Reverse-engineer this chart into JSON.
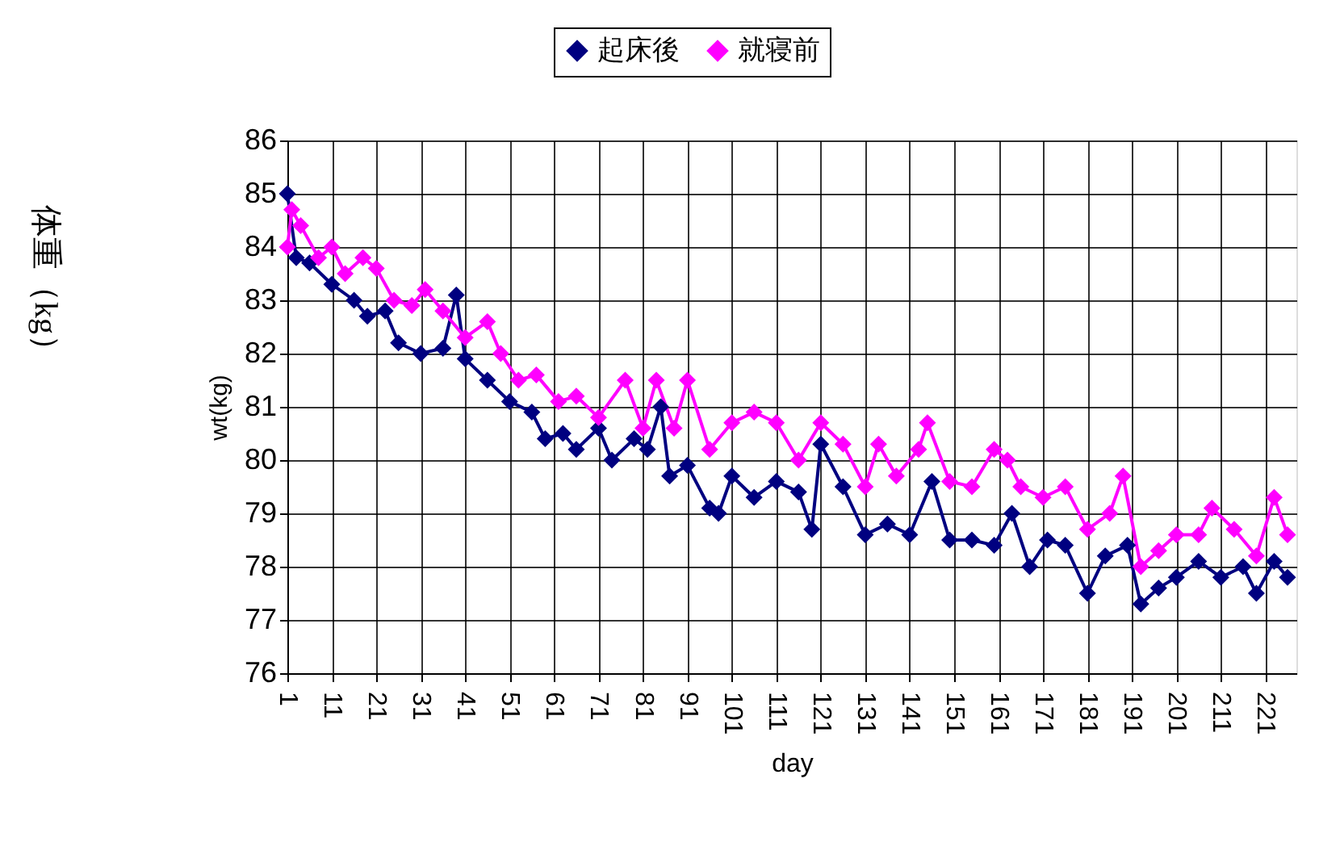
{
  "chart_data": {
    "type": "line",
    "xlabel": "day",
    "ylabel": "wt(kg)",
    "annotations": [
      "体重（kg）"
    ],
    "xlim": [
      1,
      228
    ],
    "xticks": [
      1,
      11,
      21,
      31,
      41,
      51,
      61,
      71,
      81,
      91,
      101,
      111,
      121,
      131,
      141,
      151,
      161,
      171,
      181,
      191,
      201,
      211,
      221
    ],
    "ylim": [
      76,
      86
    ],
    "yticks": [
      76,
      77,
      78,
      79,
      80,
      81,
      82,
      83,
      84,
      85,
      86
    ],
    "grid": true,
    "legend": "top",
    "marker": "diamond",
    "line_style": "solid",
    "series": [
      {
        "name": "起床後",
        "color": "#000080",
        "x": [
          1,
          3,
          6,
          11,
          16,
          19,
          23,
          26,
          31,
          36,
          39,
          41,
          46,
          51,
          56,
          59,
          63,
          66,
          71,
          74,
          79,
          82,
          85,
          87,
          91,
          96,
          98,
          101,
          106,
          111,
          116,
          119,
          121,
          126,
          131,
          136,
          141,
          146,
          150,
          155,
          160,
          164,
          168,
          172,
          176,
          181,
          185,
          190,
          193,
          197,
          201,
          206,
          211,
          216,
          219,
          223,
          226
        ],
        "values": [
          85.0,
          83.8,
          83.7,
          83.3,
          83.0,
          82.7,
          82.8,
          82.2,
          82.0,
          82.1,
          83.1,
          81.9,
          81.5,
          81.1,
          80.9,
          80.4,
          80.5,
          80.2,
          80.6,
          80.0,
          80.4,
          80.2,
          81.0,
          79.7,
          79.9,
          79.1,
          79.0,
          79.7,
          79.3,
          79.6,
          79.4,
          78.7,
          80.3,
          79.5,
          78.6,
          78.8,
          78.6,
          79.6,
          78.5,
          78.5,
          78.4,
          79.0,
          78.0,
          78.5,
          78.4,
          77.5,
          78.2,
          78.4,
          77.3,
          77.6,
          77.8,
          78.1,
          77.8,
          78.0,
          77.5,
          78.1,
          77.8
        ]
      },
      {
        "name": "就寝前",
        "color": "#ff00ff",
        "x": [
          1,
          2,
          4,
          8,
          11,
          14,
          18,
          21,
          25,
          29,
          32,
          36,
          41,
          46,
          49,
          53,
          57,
          62,
          66,
          71,
          77,
          81,
          84,
          88,
          91,
          96,
          101,
          106,
          111,
          116,
          121,
          126,
          131,
          134,
          138,
          143,
          145,
          150,
          155,
          160,
          163,
          166,
          171,
          176,
          181,
          186,
          189,
          193,
          197,
          201,
          206,
          209,
          214,
          219,
          223,
          226
        ],
        "values": [
          84.0,
          84.7,
          84.4,
          83.8,
          84.0,
          83.5,
          83.8,
          83.6,
          83.0,
          82.9,
          83.2,
          82.8,
          82.3,
          82.6,
          82.0,
          81.5,
          81.6,
          81.1,
          81.2,
          80.8,
          81.5,
          80.6,
          81.5,
          80.6,
          81.5,
          80.2,
          80.7,
          80.9,
          80.7,
          80.0,
          80.7,
          80.3,
          79.5,
          80.3,
          79.7,
          80.2,
          80.7,
          79.6,
          79.5,
          80.2,
          80.0,
          79.5,
          79.3,
          79.5,
          78.7,
          79.0,
          79.7,
          78.0,
          78.3,
          78.6,
          78.6,
          79.1,
          78.7,
          78.2,
          79.3,
          78.6
        ]
      }
    ]
  }
}
